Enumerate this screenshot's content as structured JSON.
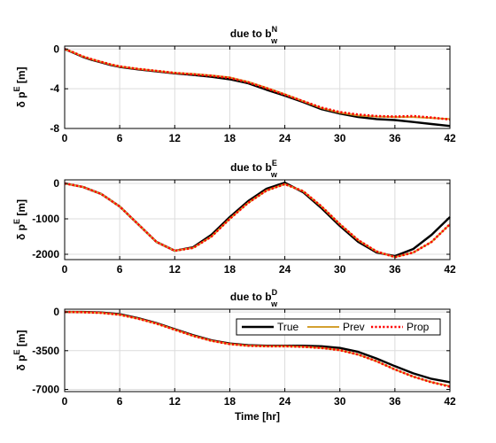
{
  "chart_data": [
    {
      "type": "line",
      "title": "due to b",
      "title_sub": "w",
      "title_sup": "N",
      "ylabel_main": "δ p",
      "ylabel_sup": "E",
      "ylabel_unit": " [m]",
      "xlabel": "",
      "xlim": [
        0,
        42
      ],
      "ylim": [
        -8,
        0.3
      ],
      "xticks": [
        0,
        6,
        12,
        18,
        24,
        30,
        36,
        42
      ],
      "yticks": [
        0,
        -4,
        -8
      ],
      "grid": true,
      "x": [
        0,
        1,
        2,
        3,
        4,
        5,
        6,
        8,
        10,
        12,
        14,
        16,
        18,
        20,
        22,
        24,
        26,
        28,
        30,
        32,
        34,
        36,
        38,
        40,
        42
      ],
      "series": [
        {
          "name": "True",
          "color": "#000000",
          "values": [
            0,
            -0.4,
            -0.8,
            -1.1,
            -1.35,
            -1.6,
            -1.8,
            -2.05,
            -2.25,
            -2.45,
            -2.6,
            -2.8,
            -3.05,
            -3.45,
            -4.1,
            -4.7,
            -5.35,
            -6.05,
            -6.5,
            -6.85,
            -7.05,
            -7.15,
            -7.35,
            -7.55,
            -7.75
          ]
        },
        {
          "name": "Prev",
          "color": "#d4a030",
          "values": [
            0,
            -0.35,
            -0.75,
            -1.05,
            -1.3,
            -1.55,
            -1.75,
            -2.0,
            -2.2,
            -2.4,
            -2.5,
            -2.65,
            -2.85,
            -3.3,
            -3.9,
            -4.55,
            -5.25,
            -5.95,
            -6.4,
            -6.7,
            -6.8,
            -6.85,
            -6.85,
            -6.95,
            -7.05
          ]
        },
        {
          "name": "Prop",
          "color": "#ff0000",
          "values": [
            0,
            -0.35,
            -0.75,
            -1.05,
            -1.3,
            -1.55,
            -1.75,
            -2.0,
            -2.2,
            -2.4,
            -2.55,
            -2.7,
            -2.9,
            -3.35,
            -3.95,
            -4.6,
            -5.25,
            -5.9,
            -6.35,
            -6.6,
            -6.75,
            -6.8,
            -6.75,
            -6.9,
            -7.1
          ]
        }
      ]
    },
    {
      "type": "line",
      "title": "due to b",
      "title_sub": "w",
      "title_sup": "E",
      "ylabel_main": "δ p",
      "ylabel_sup": "E",
      "ylabel_unit": " [m]",
      "xlabel": "",
      "xlim": [
        0,
        42
      ],
      "ylim": [
        -2150,
        100
      ],
      "xticks": [
        0,
        6,
        12,
        18,
        24,
        30,
        36,
        42
      ],
      "yticks": [
        0,
        -1000,
        -2000
      ],
      "grid": true,
      "x": [
        0,
        2,
        4,
        6,
        8,
        10,
        12,
        14,
        16,
        18,
        20,
        22,
        24,
        26,
        28,
        30,
        32,
        34,
        36,
        38,
        40,
        42
      ],
      "series": [
        {
          "name": "True",
          "color": "#000000",
          "values": [
            0,
            -100,
            -300,
            -650,
            -1150,
            -1650,
            -1900,
            -1800,
            -1450,
            -950,
            -500,
            -150,
            20,
            -250,
            -700,
            -1200,
            -1650,
            -1950,
            -2050,
            -1850,
            -1450,
            -950
          ]
        },
        {
          "name": "Prev",
          "color": "#d4a030",
          "values": [
            0,
            -100,
            -300,
            -650,
            -1150,
            -1650,
            -1900,
            -1820,
            -1500,
            -1000,
            -550,
            -200,
            -20,
            -220,
            -650,
            -1150,
            -1600,
            -1920,
            -2080,
            -1950,
            -1650,
            -1150
          ]
        },
        {
          "name": "Prop",
          "color": "#ff0000",
          "values": [
            0,
            -100,
            -300,
            -650,
            -1150,
            -1650,
            -1900,
            -1820,
            -1500,
            -1000,
            -550,
            -200,
            -20,
            -220,
            -650,
            -1150,
            -1600,
            -1920,
            -2080,
            -1950,
            -1650,
            -1150
          ]
        }
      ]
    },
    {
      "type": "line",
      "title": "due to b",
      "title_sub": "w",
      "title_sup": "D",
      "ylabel_main": "δ p",
      "ylabel_sup": "E",
      "ylabel_unit": " [m]",
      "xlabel": "Time [hr]",
      "xlim": [
        0,
        42
      ],
      "ylim": [
        -7200,
        250
      ],
      "xticks": [
        0,
        6,
        12,
        18,
        24,
        30,
        36,
        42
      ],
      "yticks": [
        0,
        -3500,
        -7000
      ],
      "grid": true,
      "legend": "top-right",
      "x": [
        0,
        2,
        4,
        6,
        8,
        10,
        12,
        14,
        16,
        18,
        20,
        22,
        24,
        26,
        28,
        30,
        32,
        34,
        36,
        38,
        40,
        42
      ],
      "series": [
        {
          "name": "True",
          "color": "#000000",
          "values": [
            0,
            0,
            -50,
            -200,
            -550,
            -1000,
            -1550,
            -2100,
            -2550,
            -2850,
            -3000,
            -3050,
            -3050,
            -3050,
            -3100,
            -3250,
            -3600,
            -4200,
            -4900,
            -5550,
            -6050,
            -6350
          ]
        },
        {
          "name": "Prev",
          "color": "#d4a030",
          "values": [
            0,
            -20,
            -80,
            -250,
            -600,
            -1050,
            -1600,
            -2150,
            -2600,
            -2900,
            -3050,
            -3100,
            -3100,
            -3150,
            -3250,
            -3450,
            -3850,
            -4450,
            -5200,
            -5850,
            -6350,
            -6700
          ]
        },
        {
          "name": "Prop",
          "color": "#ff0000",
          "values": [
            0,
            -20,
            -80,
            -250,
            -600,
            -1050,
            -1600,
            -2150,
            -2600,
            -2900,
            -3050,
            -3100,
            -3100,
            -3150,
            -3250,
            -3450,
            -3850,
            -4450,
            -5200,
            -5850,
            -6350,
            -6750
          ]
        }
      ]
    }
  ]
}
